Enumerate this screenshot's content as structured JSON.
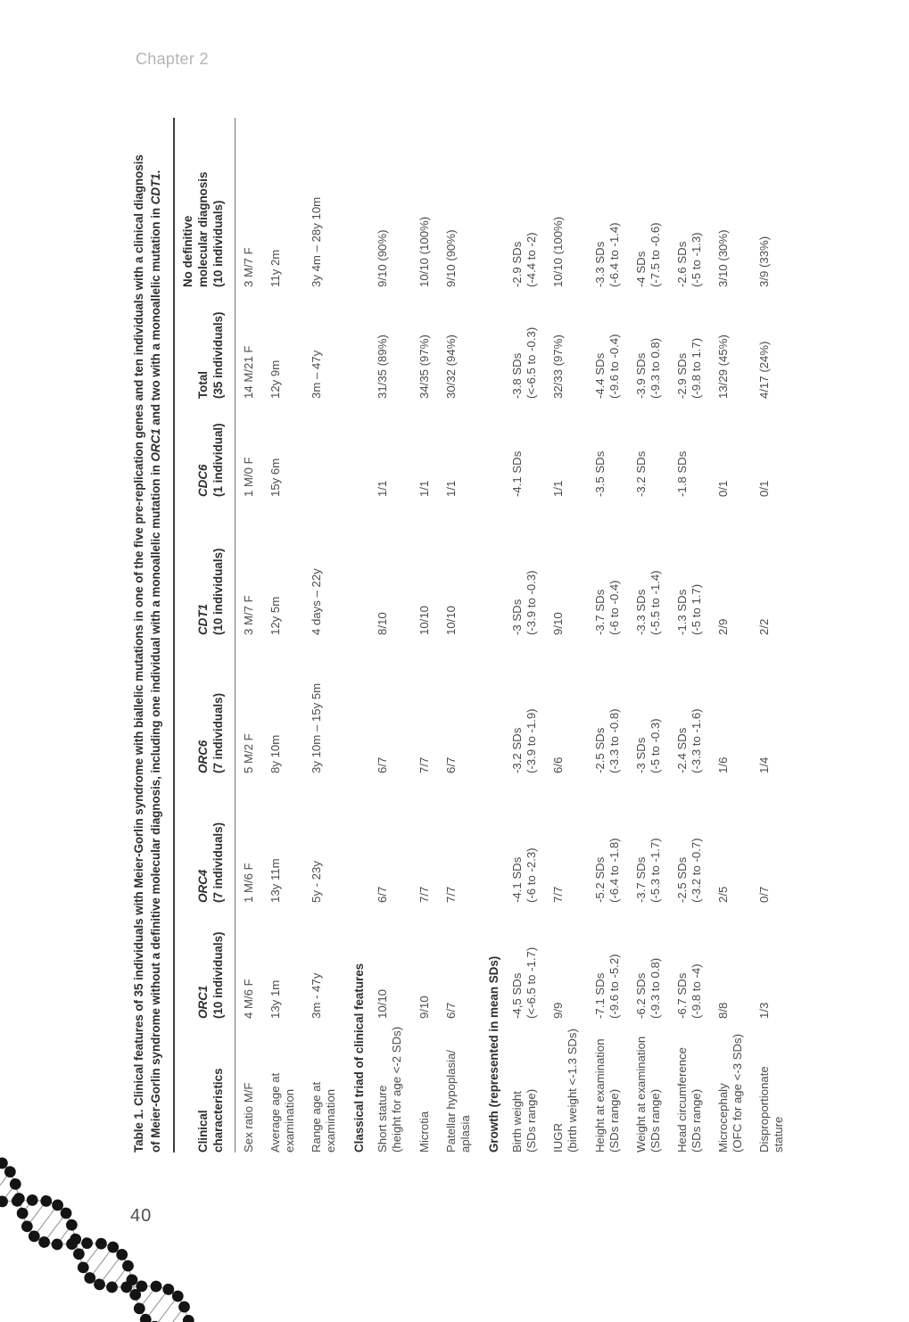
{
  "page": {
    "chapter_header": "Chapter 2",
    "page_number": "40"
  },
  "colors": {
    "body_text": "#4c4c4c",
    "heading_text": "#2e2e2e",
    "chapter_text": "#b5b5b5",
    "rule_dark": "#3d3d3d",
    "rule_mid": "#737373",
    "dna_dot": "#141414",
    "dna_line": "#9a9a9a"
  },
  "decoration": {
    "dna_helix_icon": "dna-helix"
  },
  "table": {
    "title_lines": [
      [
        {
          "text": "Table 1. Clinical features of 35 individuals with Meier-Gorlin syndrome with biallelic mutations in one of the five pre-replication genes and ten individuals with a clinical diagnosis",
          "italic": false
        }
      ],
      [
        {
          "text": "of Meier-Gorlin syndrome without a definitive molecular diagnosis, including one individual with a monoallelic mutation in ",
          "italic": false
        },
        {
          "text": "ORC1",
          "italic": true
        },
        {
          "text": " and two with a monoallelic mutation in ",
          "italic": false
        },
        {
          "text": "CDT1",
          "italic": true
        },
        {
          "text": ".",
          "italic": false
        }
      ]
    ],
    "columns": [
      {
        "title_lines": [
          "Clinical characteristics"
        ],
        "subtitle": "",
        "italic_title": false
      },
      {
        "title_lines": [
          "ORC1"
        ],
        "subtitle": "(10 individuals)",
        "italic_title": true
      },
      {
        "title_lines": [
          "ORC4"
        ],
        "subtitle": "(7 individuals)",
        "italic_title": true
      },
      {
        "title_lines": [
          "ORC6"
        ],
        "subtitle": "(7 individuals)",
        "italic_title": true
      },
      {
        "title_lines": [
          "CDT1"
        ],
        "subtitle": "(10 individuals)",
        "italic_title": true
      },
      {
        "title_lines": [
          "CDC6"
        ],
        "subtitle": "(1 individual)",
        "italic_title": true
      },
      {
        "title_lines": [
          "Total"
        ],
        "subtitle": "(35 individuals)",
        "italic_title": false
      },
      {
        "title_lines": [
          "No definitive",
          "molecular diagnosis"
        ],
        "subtitle": "(10 individuals)",
        "italic_title": false
      }
    ],
    "rows": [
      {
        "type": "data",
        "label": [
          "Sex ratio M/F"
        ],
        "values": [
          [
            "4 M/6 F"
          ],
          [
            "1 M/6 F"
          ],
          [
            "5 M/2 F"
          ],
          [
            "3 M/7 F"
          ],
          [
            "1 M/0 F"
          ],
          [
            "14 M/21 F"
          ],
          [
            "3 M/7 F"
          ]
        ]
      },
      {
        "type": "data",
        "label": [
          "Average age at",
          "examination"
        ],
        "values": [
          [
            "13y 1m"
          ],
          [
            "13y 11m"
          ],
          [
            "8y 10m"
          ],
          [
            "12y 5m"
          ],
          [
            "15y 6m"
          ],
          [
            "12y 9m"
          ],
          [
            "11y 2m"
          ]
        ]
      },
      {
        "type": "data",
        "label": [
          "Range age at",
          "examination"
        ],
        "values": [
          [
            "3m - 47y"
          ],
          [
            "5y - 23y"
          ],
          [
            "3y 10m – 15y 5m"
          ],
          [
            "4 days – 22y"
          ],
          [
            ""
          ],
          [
            "3m – 47y"
          ],
          [
            "3y 4m – 28y 10m"
          ]
        ]
      },
      {
        "type": "section",
        "label": [
          "Classical triad of clinical features"
        ]
      },
      {
        "type": "data",
        "label": [
          "Short stature",
          "(height for age <-2 SDs)"
        ],
        "values": [
          [
            "10/10"
          ],
          [
            "6/7"
          ],
          [
            "6/7"
          ],
          [
            "8/10"
          ],
          [
            "1/1"
          ],
          [
            "31/35 (89%)"
          ],
          [
            "9/10 (90%)"
          ]
        ]
      },
      {
        "type": "data",
        "label": [
          "Microtia"
        ],
        "values": [
          [
            "9/10"
          ],
          [
            "7/7"
          ],
          [
            "7/7"
          ],
          [
            "10/10"
          ],
          [
            "1/1"
          ],
          [
            "34/35 (97%)"
          ],
          [
            "10/10 (100%)"
          ]
        ]
      },
      {
        "type": "data",
        "label": [
          "Patellar hypoplasia/",
          "aplasia"
        ],
        "values": [
          [
            "6/7"
          ],
          [
            "7/7"
          ],
          [
            "6/7"
          ],
          [
            "10/10"
          ],
          [
            "1/1"
          ],
          [
            "30/32 (94%)"
          ],
          [
            "9/10 (90%)"
          ]
        ]
      },
      {
        "type": "section",
        "label": [
          "Growth (represented in mean SDs)"
        ]
      },
      {
        "type": "data",
        "label": [
          "Birth weight",
          "(SDs range)"
        ],
        "values": [
          [
            "-4,5 SDs",
            "(<-6.5 to -1.7)"
          ],
          [
            "-4.1 SDs",
            "(-6 to -2.3)"
          ],
          [
            "-3.2 SDs",
            "(-3.9 to -1.9)"
          ],
          [
            "-3 SDs",
            "(-3.9 to -0.3)"
          ],
          [
            "-4.1 SDs"
          ],
          [
            "-3.8 SDs",
            "(<-6.5 to -0.3)"
          ],
          [
            "-2.9 SDs",
            "(-4.4 to -2)"
          ]
        ]
      },
      {
        "type": "data",
        "label": [
          "IUGR",
          "(birth weight <-1.3 SDs)"
        ],
        "values": [
          [
            "9/9"
          ],
          [
            "7/7"
          ],
          [
            "6/6"
          ],
          [
            "9/10"
          ],
          [
            "1/1"
          ],
          [
            "32/33 (97%)"
          ],
          [
            "10/10 (100%)"
          ]
        ]
      },
      {
        "type": "data",
        "label": [
          "Height at examination",
          "(SDs range)"
        ],
        "values": [
          [
            "-7.1 SDs",
            "(-9.6 to -5.2)"
          ],
          [
            "-5.2 SDs",
            "(-6.4 to -1.8)"
          ],
          [
            "-2.5 SDs",
            "(-3.3 to -0.8)"
          ],
          [
            "-3.7 SDs",
            "(-6 to -0.4)"
          ],
          [
            "-3.5 SDs"
          ],
          [
            "-4.4 SDs",
            "(-9.6 to -0.4)"
          ],
          [
            "-3.3 SDs",
            "(-6.4 to -1.4)"
          ]
        ]
      },
      {
        "type": "data",
        "label": [
          "Weight at examination",
          "(SDs range)"
        ],
        "values": [
          [
            "-6.2 SDs",
            "(-9.3 to 0.8)"
          ],
          [
            "-3.7 SDs",
            "(-5.3 to -1.7)"
          ],
          [
            "-3 SDs",
            "(-5 to -0.3)"
          ],
          [
            "-3.3 SDs",
            "(-5.5 to -1.4)"
          ],
          [
            "-3.2 SDs"
          ],
          [
            "-3.9 SDs",
            "(-9.3 to 0.8)"
          ],
          [
            "-4 SDs",
            "(-7.5 to -0.6)"
          ]
        ]
      },
      {
        "type": "data",
        "label": [
          "Head circumference",
          "(SDs range)"
        ],
        "values": [
          [
            "-6.7 SDs",
            "(-9.8 to -4)"
          ],
          [
            "-2.5 SDs",
            "(-3.2 to -0.7)"
          ],
          [
            "-2.4 SDs",
            "(-3.3 to -1.6)"
          ],
          [
            "-1.3 SDs",
            "(-5 to 1.7)"
          ],
          [
            "-1.8 SDs"
          ],
          [
            "-2.9 SDs",
            "(-9.8 to 1.7)"
          ],
          [
            "-2.6 SDs",
            "(-5 to -1.3)"
          ]
        ]
      },
      {
        "type": "data",
        "label": [
          "Microcephaly",
          "(OFC for age <-3 SDs)"
        ],
        "values": [
          [
            "8/8"
          ],
          [
            "2/5"
          ],
          [
            "1/6"
          ],
          [
            "2/9"
          ],
          [
            "0/1"
          ],
          [
            "13/29 (45%)"
          ],
          [
            "3/10 (30%)"
          ]
        ]
      },
      {
        "type": "data",
        "label": [
          "Disproportionate",
          "stature"
        ],
        "values": [
          [
            "1/3"
          ],
          [
            "0/7"
          ],
          [
            "1/4"
          ],
          [
            "2/2"
          ],
          [
            "0/1"
          ],
          [
            "4/17 (24%)"
          ],
          [
            "3/9 (33%)"
          ]
        ]
      }
    ]
  }
}
